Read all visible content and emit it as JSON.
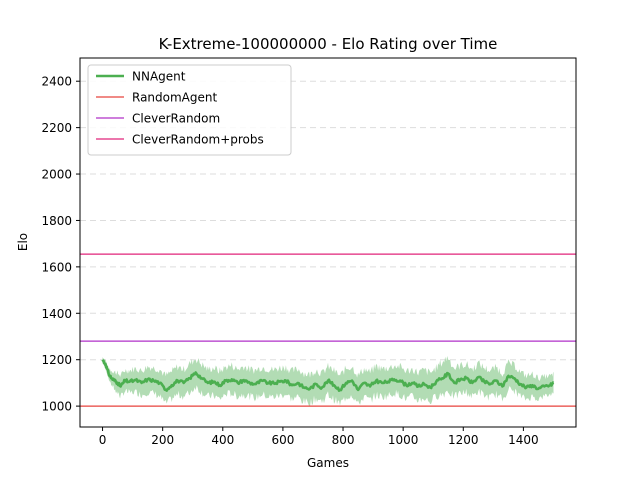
{
  "chart_data": {
    "type": "line",
    "title": "K-Extreme-100000000 - Elo Rating over Time",
    "xlabel": "Games",
    "ylabel": "Elo",
    "xlim": [
      -75,
      1575
    ],
    "ylim": [
      910,
      2500
    ],
    "xticks": [
      0,
      200,
      400,
      600,
      800,
      1000,
      1200,
      1400
    ],
    "yticks": [
      1000,
      1200,
      1400,
      1600,
      1800,
      2000,
      2200,
      2400
    ],
    "grid": "horizontal dashed",
    "legend_position": "top-left",
    "series": [
      {
        "name": "NNAgent",
        "kind": "line_with_band",
        "color": "#4caf50",
        "band_color": "#a5d6a7",
        "x": [
          0,
          10,
          20,
          30,
          40,
          50,
          60,
          75,
          90,
          110,
          130,
          150,
          170,
          190,
          210,
          230,
          250,
          270,
          290,
          310,
          330,
          350,
          370,
          390,
          410,
          430,
          450,
          470,
          490,
          510,
          530,
          550,
          570,
          590,
          610,
          630,
          650,
          670,
          690,
          710,
          730,
          750,
          770,
          790,
          810,
          830,
          850,
          870,
          890,
          910,
          930,
          950,
          970,
          990,
          1010,
          1030,
          1050,
          1070,
          1090,
          1110,
          1130,
          1150,
          1170,
          1190,
          1210,
          1230,
          1250,
          1270,
          1290,
          1310,
          1330,
          1350,
          1370,
          1390,
          1410,
          1430,
          1450,
          1470,
          1490,
          1500
        ],
        "y": [
          1200,
          1180,
          1140,
          1120,
          1110,
          1100,
          1085,
          1110,
          1105,
          1112,
          1100,
          1115,
          1110,
          1100,
          1070,
          1090,
          1110,
          1100,
          1120,
          1145,
          1120,
          1100,
          1105,
          1090,
          1110,
          1115,
          1100,
          1112,
          1100,
          1095,
          1110,
          1100,
          1098,
          1105,
          1110,
          1090,
          1100,
          1080,
          1075,
          1095,
          1080,
          1110,
          1090,
          1070,
          1100,
          1110,
          1070,
          1100,
          1085,
          1110,
          1100,
          1105,
          1115,
          1110,
          1090,
          1100,
          1085,
          1095,
          1080,
          1105,
          1120,
          1140,
          1100,
          1115,
          1120,
          1100,
          1125,
          1105,
          1095,
          1110,
          1085,
          1130,
          1120,
          1095,
          1080,
          1090,
          1075,
          1085,
          1090,
          1100
        ],
        "band": [
          12,
          18,
          22,
          30,
          38,
          42,
          45,
          45,
          48,
          50,
          52,
          55,
          55,
          58,
          60,
          58,
          60,
          58,
          62,
          60,
          60,
          58,
          60,
          60,
          58,
          60,
          58,
          60,
          58,
          60,
          58,
          60,
          58,
          60,
          58,
          60,
          60,
          62,
          60,
          62,
          60,
          60,
          62,
          60,
          62,
          60,
          62,
          60,
          60,
          62,
          60,
          60,
          58,
          60,
          60,
          58,
          60,
          60,
          62,
          60,
          70,
          72,
          62,
          60,
          60,
          58,
          60,
          60,
          58,
          58,
          56,
          56,
          55,
          52,
          50,
          48,
          45,
          42,
          40,
          38
        ]
      },
      {
        "name": "RandomAgent",
        "kind": "hline",
        "color": "#e8433e",
        "value": 1000
      },
      {
        "name": "CleverRandom",
        "kind": "hline",
        "color": "#b031c8",
        "value": 1280
      },
      {
        "name": "CleverRandom+probs",
        "kind": "hline",
        "color": "#e0247a",
        "value": 1655
      }
    ]
  }
}
